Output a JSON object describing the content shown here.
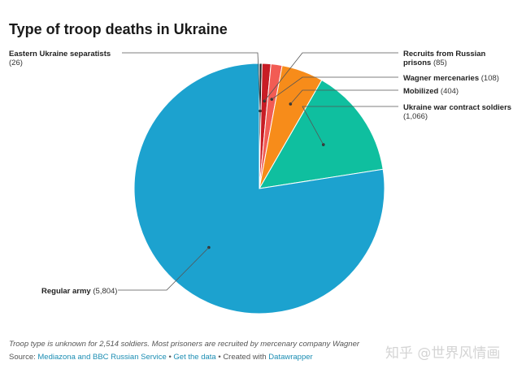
{
  "title": "Type of troop deaths in Ukraine",
  "note": "Troop type is unknown for 2,514 soldiers. Most prisoners are recruited by mercenary company Wagner",
  "source": {
    "prefix": "Source: ",
    "link1": "Mediazona and BBC Russian Service",
    "sep1": " • ",
    "link2": "Get the data",
    "sep2": " • Created with ",
    "link3": "Datawrapper"
  },
  "watermark": "知乎 @世界风情画",
  "chart_data": {
    "type": "pie",
    "title": "Type of troop deaths in Ukraine",
    "start_angle_deg": 0,
    "direction": "clockwise",
    "slices": [
      {
        "key": "sep",
        "label": "Eastern Ukraine separatists",
        "value_label": "(26)",
        "value": 26,
        "color": "#1f1f1f"
      },
      {
        "key": "recruits",
        "label": "Recruits from Russian",
        "label2": "prisons",
        "value_label": "(85)",
        "value": 85,
        "color": "#c81d25"
      },
      {
        "key": "wagner",
        "label": "Wagner mercenaries",
        "value_label": "(108)",
        "value": 108,
        "color": "#f25c54"
      },
      {
        "key": "mobilized",
        "label": "Mobilized",
        "value_label": "(404)",
        "value": 404,
        "color": "#f78c1a"
      },
      {
        "key": "contract",
        "label": "Ukraine war contract soldiers",
        "value_label": "(1,066)",
        "value": 1066,
        "color": "#0fbf9f"
      },
      {
        "key": "regular",
        "label": "Regular army",
        "value_label": "(5,804)",
        "value": 5804,
        "color": "#1ca2cf"
      }
    ]
  }
}
